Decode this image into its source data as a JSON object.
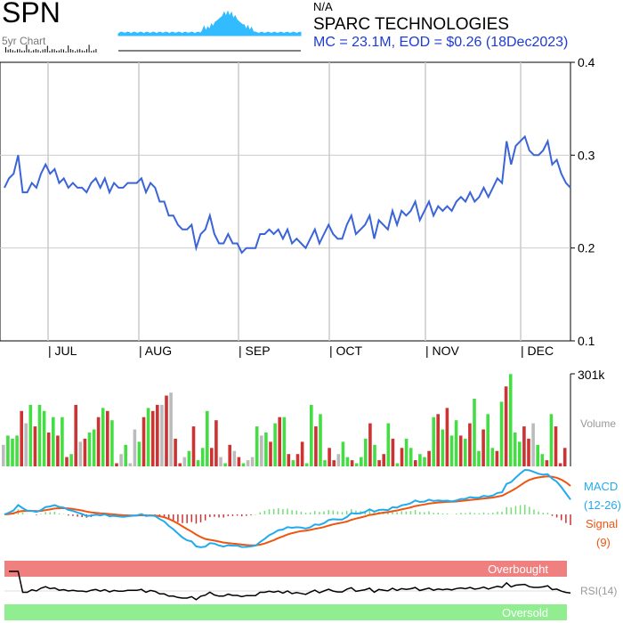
{
  "header": {
    "ticker": "SPN",
    "sub_label": "5yr Chart",
    "sector": "N/A",
    "company": "SPARC TECHNOLOGIES",
    "market_info": "MC = 23.1M, EOD = $0.26 (18Dec2023)"
  },
  "colors": {
    "price_line": "#3a64d8",
    "grid": "#cccccc",
    "vol_up": "#44dd44",
    "vol_down": "#cc3333",
    "vol_flat": "#bbbbbb",
    "macd": "#22aaee",
    "signal": "#ee5511",
    "overbought": "#f08080",
    "oversold": "#90ee90",
    "rsi": "#000000",
    "mini_chart": "#33bbff"
  },
  "chart_data": [
    {
      "type": "line",
      "title": "",
      "x_tick_labels": [
        "JUL",
        "AUG",
        "SEP",
        "OCT",
        "NOV",
        "DEC"
      ],
      "y_ticks": [
        "0.4",
        "0.3",
        "0.2",
        "0.1"
      ],
      "ylim": [
        0.1,
        0.4
      ],
      "grid": true,
      "series": [
        {
          "values": [
            0.265,
            0.275,
            0.28,
            0.3,
            0.26,
            0.26,
            0.27,
            0.265,
            0.28,
            0.29,
            0.28,
            0.285,
            0.27,
            0.275,
            0.265,
            0.27,
            0.265,
            0.265,
            0.26,
            0.27,
            0.275,
            0.265,
            0.275,
            0.26,
            0.27,
            0.265,
            0.265,
            0.27,
            0.27,
            0.27,
            0.275,
            0.26,
            0.27,
            0.265,
            0.25,
            0.25,
            0.235,
            0.235,
            0.225,
            0.22,
            0.22,
            0.225,
            0.2,
            0.215,
            0.22,
            0.235,
            0.215,
            0.205,
            0.205,
            0.215,
            0.205,
            0.205,
            0.195,
            0.2,
            0.2,
            0.2,
            0.215,
            0.215,
            0.22,
            0.215,
            0.22,
            0.21,
            0.22,
            0.205,
            0.21,
            0.205,
            0.2,
            0.21,
            0.22,
            0.205,
            0.215,
            0.225,
            0.215,
            0.21,
            0.21,
            0.225,
            0.235,
            0.215,
            0.22,
            0.225,
            0.235,
            0.21,
            0.23,
            0.225,
            0.22,
            0.24,
            0.225,
            0.24,
            0.235,
            0.24,
            0.25,
            0.23,
            0.24,
            0.25,
            0.235,
            0.245,
            0.24,
            0.245,
            0.24,
            0.25,
            0.255,
            0.25,
            0.26,
            0.25,
            0.255,
            0.265,
            0.255,
            0.265,
            0.275,
            0.27,
            0.315,
            0.29,
            0.31,
            0.315,
            0.32,
            0.305,
            0.3,
            0.3,
            0.305,
            0.315,
            0.29,
            0.295,
            0.28,
            0.27,
            0.265
          ]
        }
      ]
    },
    {
      "type": "bar",
      "title": "Volume",
      "max_label": "301k",
      "ylim": [
        0,
        301
      ],
      "series": [
        {
          "values": [
            70,
            100,
            90,
            100,
            180,
            140,
            200,
            130,
            200,
            180,
            110,
            160,
            100,
            160,
            30,
            40,
            200,
            80,
            90,
            110,
            120,
            160,
            190,
            180,
            150,
            10,
            40,
            70,
            10,
            120,
            80,
            160,
            190,
            180,
            200,
            200,
            230,
            240,
            90,
            10,
            30,
            50,
            130,
            20,
            60,
            180,
            60,
            150,
            30,
            10,
            70,
            50,
            30,
            10,
            20,
            30,
            130,
            100,
            110,
            80,
            140,
            160,
            160,
            40,
            20,
            40,
            80,
            10,
            200,
            130,
            170,
            20,
            60,
            20,
            40,
            80,
            30,
            20,
            10,
            30,
            90,
            140,
            70,
            20,
            40,
            140,
            90,
            10,
            60,
            90,
            60,
            20,
            40,
            30,
            50,
            160,
            170,
            120,
            190,
            100,
            150,
            100,
            90,
            140,
            220,
            50,
            120,
            170,
            60,
            50,
            210,
            260,
            300,
            110,
            80,
            130,
            90,
            140,
            70,
            40,
            20,
            170,
            130,
            10,
            60
          ]
        }
      ]
    },
    {
      "type": "line",
      "title": "MACD",
      "legend": [
        "MACD",
        "(12-26)",
        "Signal",
        "(9)"
      ]
    },
    {
      "type": "line",
      "title": "RSI(14)",
      "bands": [
        "Overbought",
        "Oversold"
      ]
    }
  ]
}
